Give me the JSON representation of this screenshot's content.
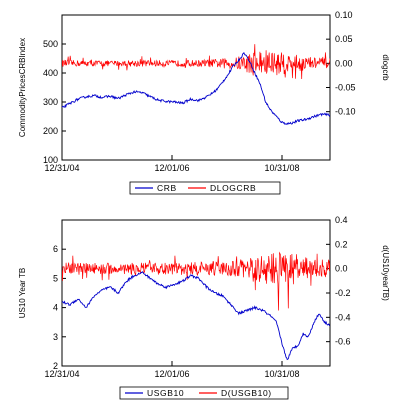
{
  "chart_data": [
    {
      "type": "line",
      "xlabel": "",
      "ylabel": "CommodityPricesCRBIndex",
      "ylabel_right": "dlogcrb",
      "x_ticks": [
        "12/31/04",
        "12/01/06",
        "10/31/08"
      ],
      "ylim": [
        100,
        600
      ],
      "ylim_right": [
        -0.2,
        0.1
      ],
      "y_ticks": [
        100,
        200,
        300,
        400,
        500
      ],
      "y_ticks_right": [
        "0.10",
        "0.05",
        "0.00",
        "-0.05",
        "-0.10"
      ],
      "legend_position": "bottom-center",
      "series": [
        {
          "name": "CRB",
          "axis": "left",
          "color": "#0000cc",
          "x": [
            0,
            3,
            6,
            9,
            12,
            15,
            18,
            21,
            24,
            27,
            30,
            33,
            36,
            39,
            42,
            45,
            48,
            51,
            54,
            56,
            58,
            60,
            62,
            63,
            64,
            66,
            68,
            70,
            72,
            74,
            76,
            78,
            80,
            82,
            84,
            86,
            88,
            91,
            94,
            97,
            100
          ],
          "values": [
            280,
            295,
            310,
            318,
            322,
            316,
            320,
            312,
            325,
            335,
            332,
            318,
            306,
            302,
            300,
            296,
            310,
            305,
            318,
            330,
            345,
            370,
            395,
            410,
            425,
            445,
            470,
            440,
            400,
            360,
            300,
            270,
            250,
            230,
            225,
            228,
            235,
            240,
            250,
            258,
            255
          ]
        },
        {
          "name": "DLOGCRB",
          "axis": "right",
          "color": "#ff0000",
          "style": "noise",
          "x": [
            0,
            10,
            20,
            30,
            40,
            50,
            55,
            60,
            65,
            70,
            73,
            75,
            80,
            85,
            90,
            95,
            100
          ],
          "amplitude": [
            0.007,
            0.006,
            0.006,
            0.007,
            0.006,
            0.007,
            0.008,
            0.01,
            0.013,
            0.022,
            0.03,
            0.03,
            0.025,
            0.02,
            0.016,
            0.012,
            0.01
          ]
        }
      ]
    },
    {
      "type": "line",
      "xlabel": "",
      "ylabel": "US10 Year TB",
      "ylabel_right": "d(US10yearTB)",
      "x_ticks": [
        "12/31/04",
        "12/01/06",
        "10/31/08"
      ],
      "ylim": [
        2,
        7
      ],
      "ylim_right": [
        -0.8,
        0.4
      ],
      "y_ticks": [
        2,
        3,
        4,
        5,
        6
      ],
      "y_ticks_right": [
        "0.4",
        "0.2",
        "0.0",
        "-0.2",
        "-0.4",
        "-0.6"
      ],
      "legend_position": "bottom-center",
      "series": [
        {
          "name": "USGB10",
          "axis": "left",
          "color": "#0000cc",
          "x": [
            0,
            3,
            6,
            9,
            12,
            15,
            18,
            21,
            24,
            27,
            30,
            33,
            36,
            39,
            42,
            45,
            48,
            51,
            54,
            57,
            60,
            63,
            66,
            69,
            72,
            75,
            78,
            80,
            82,
            84,
            86,
            88,
            90,
            92,
            94,
            96,
            98,
            100
          ],
          "values": [
            4.2,
            4.1,
            4.3,
            4.0,
            4.4,
            4.6,
            4.7,
            4.5,
            4.9,
            5.1,
            5.2,
            5.0,
            4.8,
            4.7,
            4.8,
            4.9,
            5.1,
            5.0,
            4.7,
            4.5,
            4.4,
            4.1,
            3.8,
            3.9,
            4.0,
            3.9,
            3.7,
            3.5,
            2.8,
            2.2,
            2.6,
            2.7,
            3.1,
            3.0,
            3.5,
            3.8,
            3.5,
            3.4
          ]
        },
        {
          "name": "D(USGB10)",
          "axis": "right",
          "color": "#ff0000",
          "style": "noise",
          "x": [
            0,
            10,
            20,
            30,
            40,
            50,
            60,
            65,
            70,
            75,
            80,
            85,
            90,
            95,
            100
          ],
          "amplitude": [
            0.05,
            0.05,
            0.045,
            0.05,
            0.05,
            0.055,
            0.06,
            0.07,
            0.09,
            0.12,
            0.15,
            0.14,
            0.1,
            0.08,
            0.07
          ]
        }
      ]
    }
  ]
}
